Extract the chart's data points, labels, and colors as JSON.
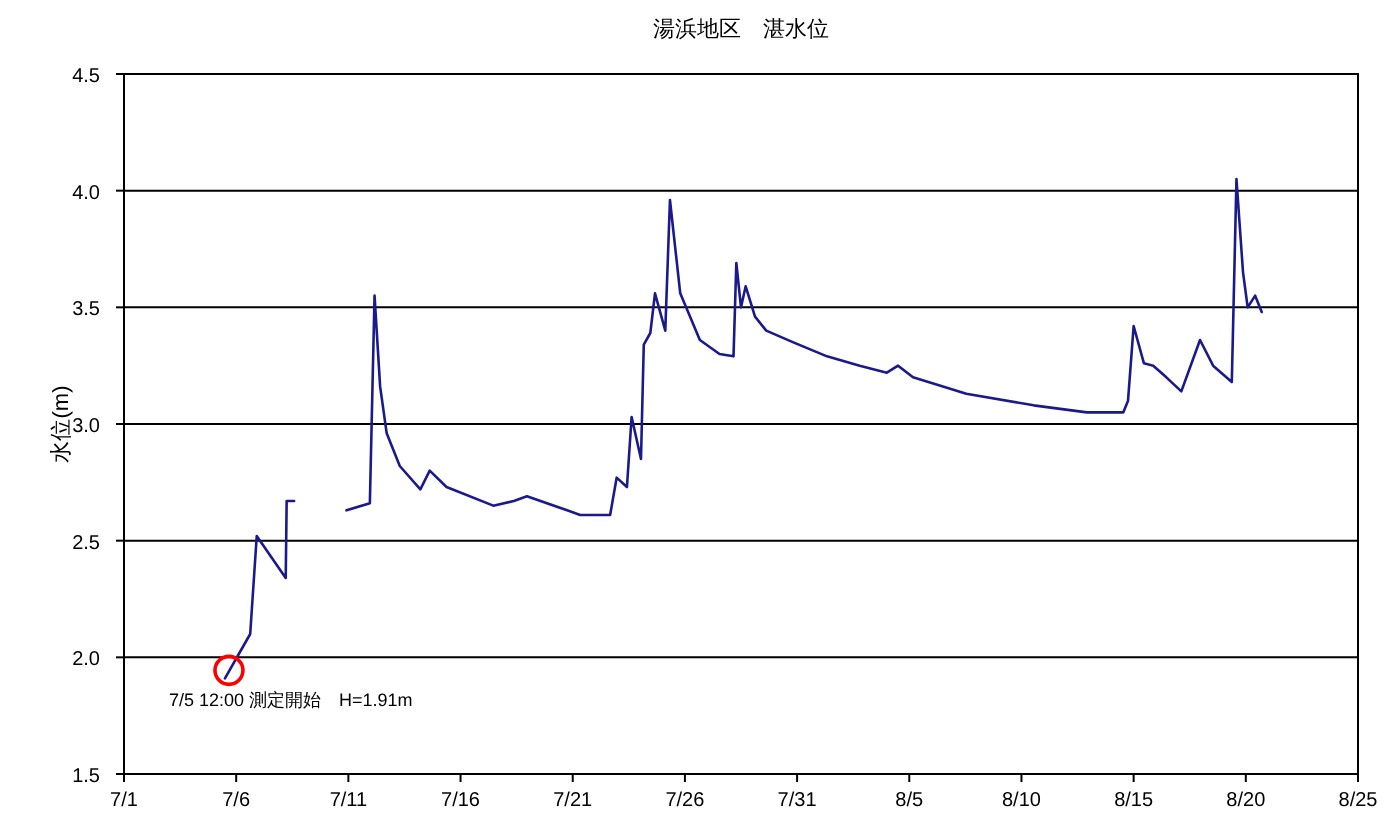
{
  "chart_data": {
    "type": "line",
    "title": "湯浜地区　湛水位",
    "ylabel": "水位(m)",
    "annotations": [
      {
        "text": "7/5 12:00 測定開始　H=1.91m",
        "x": "--07-05T12:00",
        "y": 1.91
      }
    ],
    "x": [
      "--07-05T12:00",
      "--07-06T15:00",
      "--07-06T22:00",
      "--07-08T05:00",
      "--07-08T06:00",
      "--07-08T14:00",
      "--07-09T17:00",
      "--07-10T22:00",
      "--07-11T23:00",
      "--07-12T04:00",
      "--07-12T10:00",
      "--07-12T17:00",
      "--07-13T07:00",
      "--07-14T05:00",
      "--07-14T15:00",
      "--07-15T09:00",
      "--07-17T11:00",
      "--07-18T09:00",
      "--07-18T23:00",
      "--07-20T18:00",
      "--07-21T08:00",
      "--07-22T16:00",
      "--07-22T23:00",
      "--07-23T10:00",
      "--07-23T15:00",
      "--07-24T01:00",
      "--07-24T04:00",
      "--07-24T11:00",
      "--07-24T16:00",
      "--07-25T03:00",
      "--07-25T08:00",
      "--07-25T19:00",
      "--07-26T16:00",
      "--07-27T13:00",
      "--07-28T04:00",
      "--07-28T07:00",
      "--07-28T12:00",
      "--07-28T17:00",
      "--07-29T03:00",
      "--07-29T15:00",
      "--07-30T20:00",
      "--08-01T08:00",
      "--08-02T19:00",
      "--08-04T00:00",
      "--08-04T12:00",
      "--08-05T04:00",
      "--08-07T13:00",
      "--08-10T13:00",
      "--08-12T22:00",
      "--08-14T13:00",
      "--08-14T18:00",
      "--08-15T00:00",
      "--08-15T11:00",
      "--08-15T21:00",
      "--08-16T11:00",
      "--08-17T03:00",
      "--08-17T23:00",
      "--08-18T13:00",
      "--08-19T09:00",
      "--08-19T14:00",
      "--08-19T21:00",
      "--08-20T02:00",
      "--08-20T10:00",
      "--08-20T17:00"
    ],
    "series": [
      {
        "color": "#1a1a8c",
        "values": [
          1.91,
          2.1,
          2.52,
          2.34,
          2.67,
          2.67,
          null,
          2.63,
          2.66,
          3.55,
          3.16,
          2.96,
          2.82,
          2.72,
          2.8,
          2.73,
          2.65,
          2.67,
          2.69,
          2.63,
          2.61,
          2.61,
          2.77,
          2.73,
          3.03,
          2.85,
          3.34,
          3.39,
          3.56,
          3.4,
          3.96,
          3.56,
          3.36,
          3.3,
          3.29,
          3.69,
          3.5,
          3.59,
          3.46,
          3.4,
          3.35,
          3.29,
          3.25,
          3.22,
          3.25,
          3.2,
          3.13,
          3.08,
          3.05,
          3.05,
          3.1,
          3.42,
          3.26,
          3.25,
          3.2,
          3.14,
          3.36,
          3.25,
          3.18,
          4.05,
          3.65,
          3.5,
          3.55,
          3.48
        ]
      }
    ],
    "xlim": [
      "--07-01",
      "--08-25"
    ],
    "xticks": [
      {
        "value": "--07-01",
        "label": "7/1"
      },
      {
        "value": "--07-06",
        "label": "7/6"
      },
      {
        "value": "--07-11",
        "label": "7/11"
      },
      {
        "value": "--07-16",
        "label": "7/16"
      },
      {
        "value": "--07-21",
        "label": "7/21"
      },
      {
        "value": "--07-26",
        "label": "7/26"
      },
      {
        "value": "--07-31",
        "label": "7/31"
      },
      {
        "value": "--08-05",
        "label": "8/5"
      },
      {
        "value": "--08-10",
        "label": "8/10"
      },
      {
        "value": "--08-15",
        "label": "8/15"
      },
      {
        "value": "--08-20",
        "label": "8/20"
      },
      {
        "value": "--08-25",
        "label": "8/25"
      }
    ],
    "ylim": [
      1.5,
      4.5
    ],
    "yticks": [
      {
        "value": 1.5,
        "label": "1.5"
      },
      {
        "value": 2,
        "label": "2.0"
      },
      {
        "value": 2.5,
        "label": "2.5"
      },
      {
        "value": 3,
        "label": "3.0"
      },
      {
        "value": 3.5,
        "label": "3.5"
      },
      {
        "value": 4,
        "label": "4.0"
      },
      {
        "value": 4.5,
        "label": "4.5"
      }
    ],
    "grid": "y",
    "marker": "none",
    "line_style": "solid"
  }
}
